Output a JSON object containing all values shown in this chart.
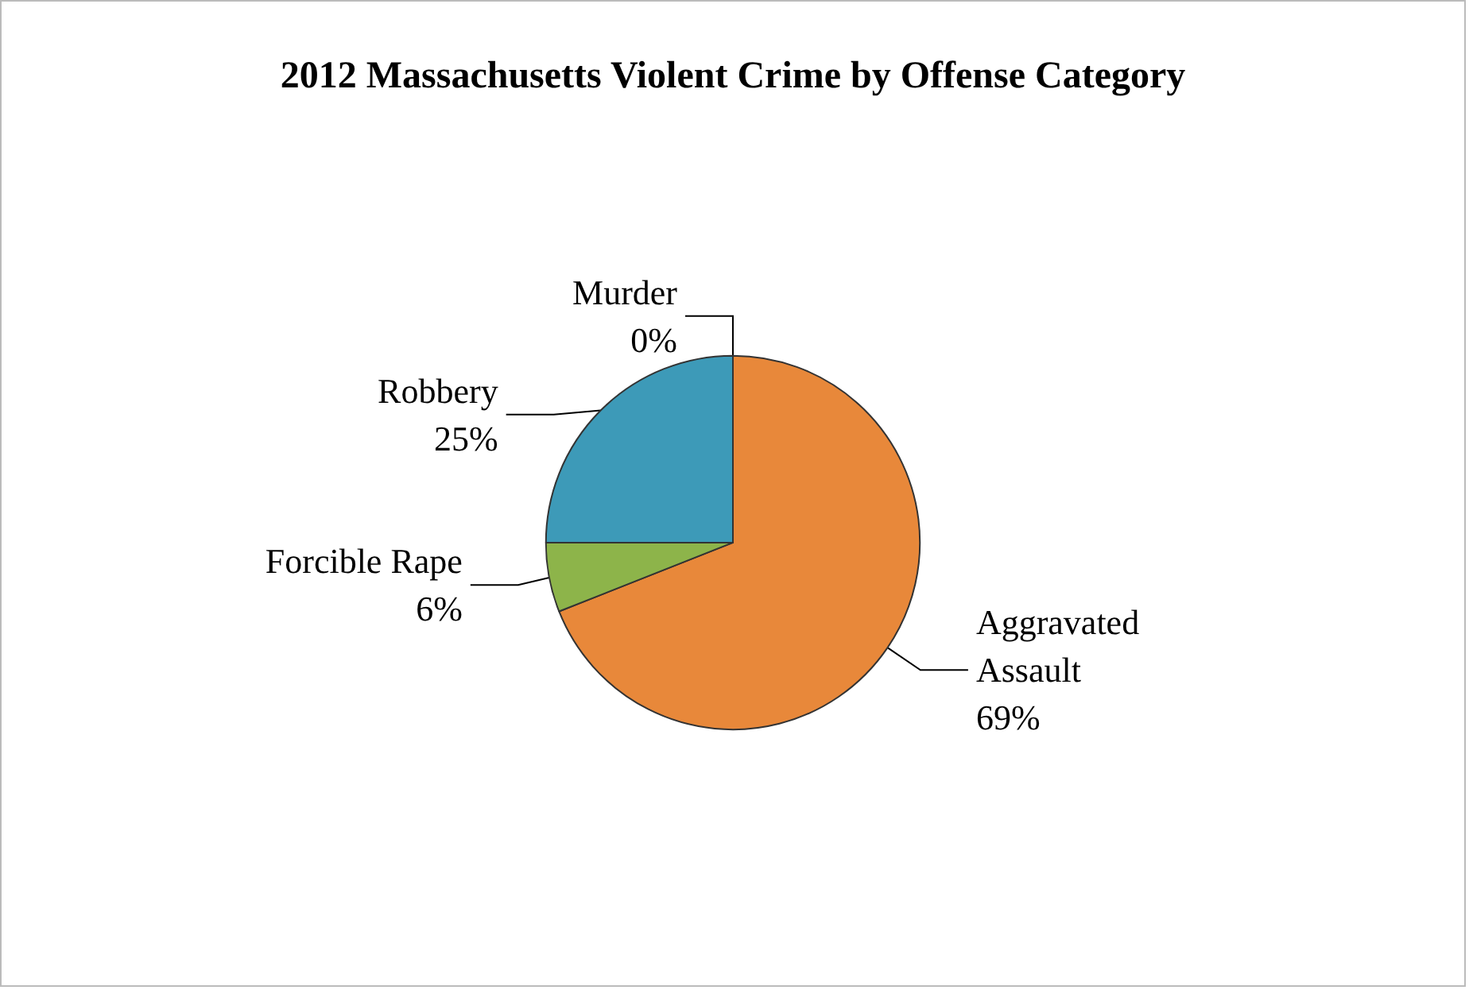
{
  "chart_data": {
    "type": "pie",
    "title": "2012 Massachusetts Violent Crime by Offense Category",
    "categories": [
      "Murder",
      "Aggravated Assault",
      "Forcible Rape",
      "Robbery"
    ],
    "values": [
      0,
      69,
      6,
      25
    ],
    "value_labels": [
      "0%",
      "69%",
      "6%",
      "25%"
    ],
    "colors": [
      "#c0504d",
      "#e8883a",
      "#8db44a",
      "#3d9ab8"
    ]
  }
}
